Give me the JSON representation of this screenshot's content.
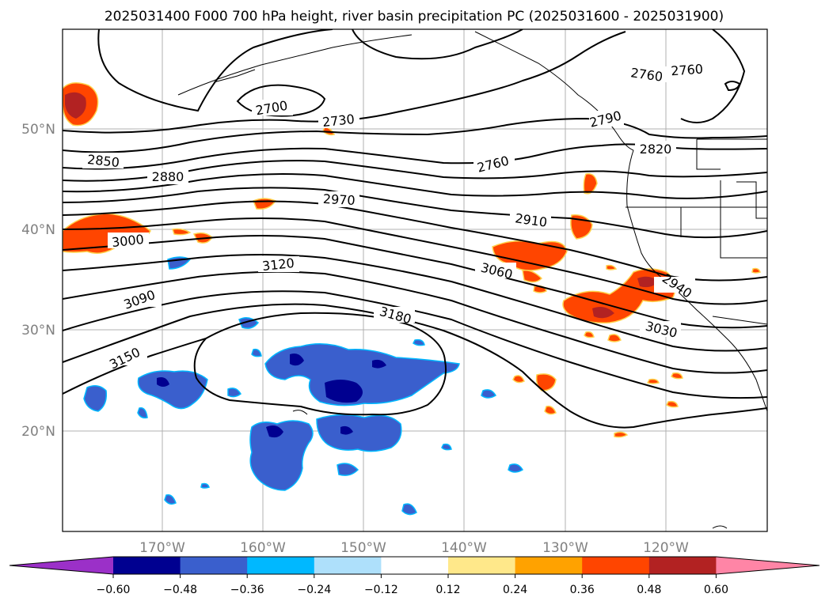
{
  "title": "2025031400 F000 700 hPa height, river basin precipitation PC (2025031600 - 2025031900)",
  "lon_ticks": [
    "170°W",
    "160°W",
    "150°W",
    "140°W",
    "130°W",
    "120°W"
  ],
  "lat_ticks": [
    "50°N",
    "40°N",
    "30°N",
    "20°N"
  ],
  "colorbar": {
    "colors": [
      "#9b30c8",
      "#000090",
      "#3a5fcd",
      "#00b8ff",
      "#aee0fb",
      "#ffffff",
      "#ffe88a",
      "#ffa200",
      "#ff4500",
      "#b22222",
      "#ff85a6"
    ],
    "tick_labels": [
      "−0.60",
      "−0.48",
      "−0.36",
      "−0.24",
      "−0.12",
      "0.12",
      "0.24",
      "0.36",
      "0.48",
      "0.60"
    ]
  },
  "contour_labels": [
    "2700",
    "2730",
    "2760",
    "2760",
    "2760",
    "2790",
    "2820",
    "2850",
    "2880",
    "2910",
    "2940",
    "2970",
    "3000",
    "3030",
    "3060",
    "3090",
    "3120",
    "3150",
    "3180"
  ],
  "colors": {
    "positive": "#ff4500",
    "positive_strong": "#b22222",
    "negative": "#3a5fcd",
    "negative_strong": "#000090",
    "contour": "#000000",
    "grid": "#b0b0b0"
  }
}
